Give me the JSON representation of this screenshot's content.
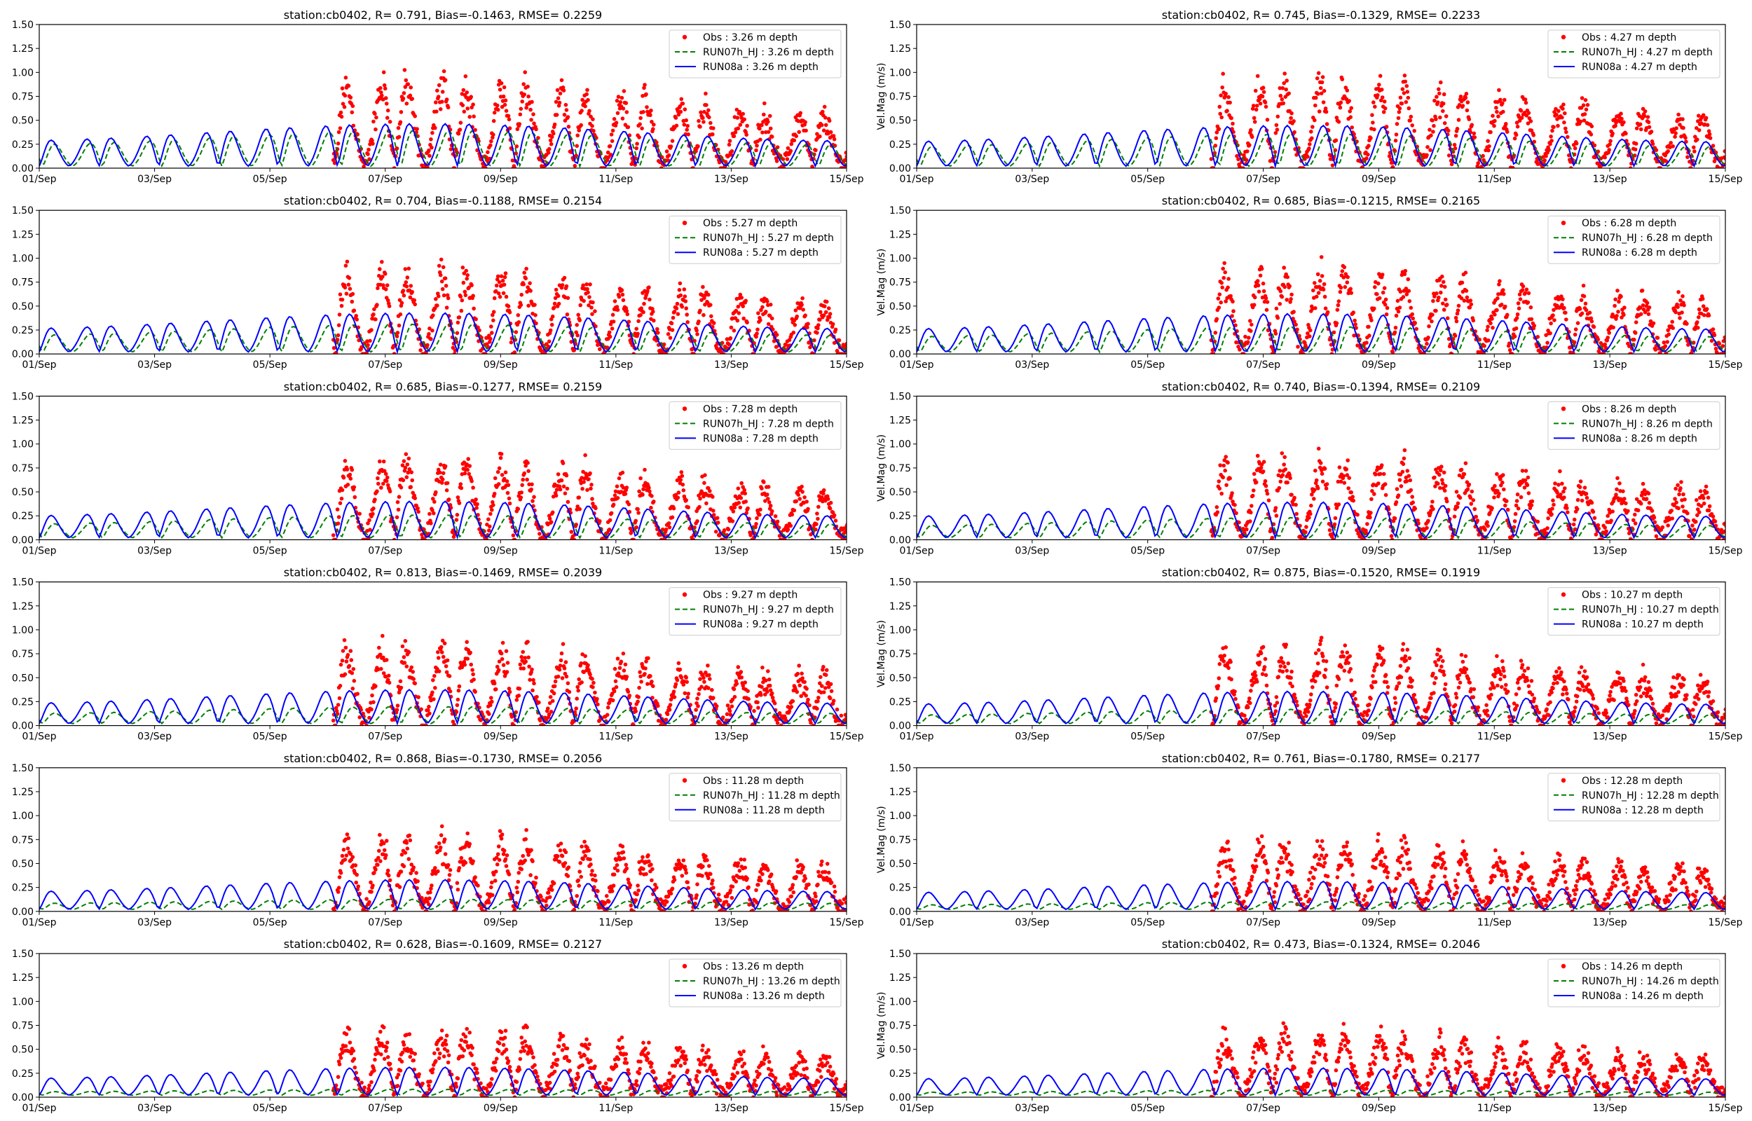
{
  "figure": {
    "ylabel_right": "Vel.Mag (m/s)",
    "colors": {
      "obs": "#ff0000",
      "run07": "#008000",
      "run08": "#0000ff",
      "axis": "#000000",
      "legend_border": "#cccccc"
    }
  },
  "chart_data": [
    {
      "type": "line",
      "title": "station:cb0402, R= 0.791, Bias=-0.1463, RMSE= 0.2259",
      "xlabel": "",
      "ylabel": "",
      "ylim": [
        0,
        1.5
      ],
      "xlim_days": [
        0,
        14
      ],
      "yticks": [
        "0.00",
        "0.25",
        "0.50",
        "0.75",
        "1.00",
        "1.25",
        "1.50"
      ],
      "xticks": [
        "01/Sep",
        "03/Sep",
        "05/Sep",
        "07/Sep",
        "09/Sep",
        "11/Sep",
        "13/Sep",
        "15/Sep"
      ],
      "legend_position": "top-right",
      "legend": [
        "Obs : 3.26 m depth",
        "RUN07h_HJ : 3.26 m depth",
        "RUN08a : 3.26 m depth"
      ],
      "model_amp_08": 0.5,
      "model_amp_07": 0.42,
      "obs_amp": 1.0,
      "obs_start_day": 5.1
    },
    {
      "type": "line",
      "title": "station:cb0402, R= 0.745, Bias=-0.1329, RMSE= 0.2233",
      "xlabel": "",
      "ylabel": "Vel.Mag (m/s)",
      "ylim": [
        0,
        1.5
      ],
      "xlim_days": [
        0,
        14
      ],
      "yticks": [
        "0.00",
        "0.25",
        "0.50",
        "0.75",
        "1.00",
        "1.25",
        "1.50"
      ],
      "xticks": [
        "01/Sep",
        "03/Sep",
        "05/Sep",
        "07/Sep",
        "09/Sep",
        "11/Sep",
        "13/Sep",
        "15/Sep"
      ],
      "legend_position": "top-right",
      "legend": [
        "Obs : 4.27 m depth",
        "RUN07h_HJ : 4.27 m depth",
        "RUN08a : 4.27 m depth"
      ],
      "model_amp_08": 0.48,
      "model_amp_07": 0.38,
      "obs_amp": 0.98,
      "obs_start_day": 5.1
    },
    {
      "type": "line",
      "title": "station:cb0402, R= 0.704, Bias=-0.1188, RMSE= 0.2154",
      "xlabel": "",
      "ylabel": "",
      "ylim": [
        0,
        1.5
      ],
      "xlim_days": [
        0,
        14
      ],
      "yticks": [
        "0.00",
        "0.25",
        "0.50",
        "0.75",
        "1.00",
        "1.25",
        "1.50"
      ],
      "xticks": [
        "01/Sep",
        "03/Sep",
        "05/Sep",
        "07/Sep",
        "09/Sep",
        "11/Sep",
        "13/Sep",
        "15/Sep"
      ],
      "legend_position": "top-right",
      "legend": [
        "Obs : 5.27 m depth",
        "RUN07h_HJ : 5.27 m depth",
        "RUN08a : 5.27 m depth"
      ],
      "model_amp_08": 0.46,
      "model_amp_07": 0.33,
      "obs_amp": 0.95,
      "obs_start_day": 5.1
    },
    {
      "type": "line",
      "title": "station:cb0402, R= 0.685, Bias=-0.1215, RMSE= 0.2165",
      "xlabel": "",
      "ylabel": "Vel.Mag (m/s)",
      "ylim": [
        0,
        1.5
      ],
      "xlim_days": [
        0,
        14
      ],
      "yticks": [
        "0.00",
        "0.25",
        "0.50",
        "0.75",
        "1.00",
        "1.25",
        "1.50"
      ],
      "xticks": [
        "01/Sep",
        "03/Sep",
        "05/Sep",
        "07/Sep",
        "09/Sep",
        "11/Sep",
        "13/Sep",
        "15/Sep"
      ],
      "legend_position": "top-right",
      "legend": [
        "Obs : 6.28 m depth",
        "RUN07h_HJ : 6.28 m depth",
        "RUN08a : 6.28 m depth"
      ],
      "model_amp_08": 0.45,
      "model_amp_07": 0.3,
      "obs_amp": 0.95,
      "obs_start_day": 5.1
    },
    {
      "type": "line",
      "title": "station:cb0402, R= 0.685, Bias=-0.1277, RMSE= 0.2159",
      "xlabel": "",
      "ylabel": "",
      "ylim": [
        0,
        1.5
      ],
      "xlim_days": [
        0,
        14
      ],
      "yticks": [
        "0.00",
        "0.25",
        "0.50",
        "0.75",
        "1.00",
        "1.25",
        "1.50"
      ],
      "xticks": [
        "01/Sep",
        "03/Sep",
        "05/Sep",
        "07/Sep",
        "09/Sep",
        "11/Sep",
        "13/Sep",
        "15/Sep"
      ],
      "legend_position": "top-right",
      "legend": [
        "Obs : 7.28 m depth",
        "RUN07h_HJ : 7.28 m depth",
        "RUN08a : 7.28 m depth"
      ],
      "model_amp_08": 0.43,
      "model_amp_07": 0.27,
      "obs_amp": 0.92,
      "obs_start_day": 5.1
    },
    {
      "type": "line",
      "title": "station:cb0402, R= 0.740, Bias=-0.1394, RMSE= 0.2109",
      "xlabel": "",
      "ylabel": "Vel.Mag (m/s)",
      "ylim": [
        0,
        1.5
      ],
      "xlim_days": [
        0,
        14
      ],
      "yticks": [
        "0.00",
        "0.25",
        "0.50",
        "0.75",
        "1.00",
        "1.25",
        "1.50"
      ],
      "xticks": [
        "01/Sep",
        "03/Sep",
        "05/Sep",
        "07/Sep",
        "09/Sep",
        "11/Sep",
        "13/Sep",
        "15/Sep"
      ],
      "legend_position": "top-right",
      "legend": [
        "Obs : 8.26 m depth",
        "RUN07h_HJ : 8.26 m depth",
        "RUN08a : 8.26 m depth"
      ],
      "model_amp_08": 0.42,
      "model_amp_07": 0.24,
      "obs_amp": 0.92,
      "obs_start_day": 5.1
    },
    {
      "type": "line",
      "title": "station:cb0402, R= 0.813, Bias=-0.1469, RMSE= 0.2039",
      "xlabel": "",
      "ylabel": "",
      "ylim": [
        0,
        1.5
      ],
      "xlim_days": [
        0,
        14
      ],
      "yticks": [
        "0.00",
        "0.25",
        "0.50",
        "0.75",
        "1.00",
        "1.25",
        "1.50"
      ],
      "xticks": [
        "01/Sep",
        "03/Sep",
        "05/Sep",
        "07/Sep",
        "09/Sep",
        "11/Sep",
        "13/Sep",
        "15/Sep"
      ],
      "legend_position": "top-right",
      "legend": [
        "Obs : 9.27 m depth",
        "RUN07h_HJ : 9.27 m depth",
        "RUN08a : 9.27 m depth"
      ],
      "model_amp_08": 0.4,
      "model_amp_07": 0.2,
      "obs_amp": 0.9,
      "obs_start_day": 5.1
    },
    {
      "type": "line",
      "title": "station:cb0402, R= 0.875, Bias=-0.1520, RMSE= 0.1919",
      "xlabel": "",
      "ylabel": "Vel.Mag (m/s)",
      "ylim": [
        0,
        1.5
      ],
      "xlim_days": [
        0,
        14
      ],
      "yticks": [
        "0.00",
        "0.25",
        "0.50",
        "0.75",
        "1.00",
        "1.25",
        "1.50"
      ],
      "xticks": [
        "01/Sep",
        "03/Sep",
        "05/Sep",
        "07/Sep",
        "09/Sep",
        "11/Sep",
        "13/Sep",
        "15/Sep"
      ],
      "legend_position": "top-right",
      "legend": [
        "Obs : 10.27 m depth",
        "RUN07h_HJ : 10.27 m depth",
        "RUN08a : 10.27 m depth"
      ],
      "model_amp_08": 0.38,
      "model_amp_07": 0.17,
      "obs_amp": 0.88,
      "obs_start_day": 5.1
    },
    {
      "type": "line",
      "title": "station:cb0402, R= 0.868, Bias=-0.1730, RMSE= 0.2056",
      "xlabel": "",
      "ylabel": "",
      "ylim": [
        0,
        1.5
      ],
      "xlim_days": [
        0,
        14
      ],
      "yticks": [
        "0.00",
        "0.25",
        "0.50",
        "0.75",
        "1.00",
        "1.25",
        "1.50"
      ],
      "xticks": [
        "01/Sep",
        "03/Sep",
        "05/Sep",
        "07/Sep",
        "09/Sep",
        "11/Sep",
        "13/Sep",
        "15/Sep"
      ],
      "legend_position": "top-right",
      "legend": [
        "Obs : 11.28 m depth",
        "RUN07h_HJ : 11.28 m depth",
        "RUN08a : 11.28 m depth"
      ],
      "model_amp_08": 0.35,
      "model_amp_07": 0.12,
      "obs_amp": 0.82,
      "obs_start_day": 5.1
    },
    {
      "type": "line",
      "title": "station:cb0402, R= 0.761, Bias=-0.1780, RMSE= 0.2177",
      "xlabel": "",
      "ylabel": "Vel.Mag (m/s)",
      "ylim": [
        0,
        1.5
      ],
      "xlim_days": [
        0,
        14
      ],
      "yticks": [
        "0.00",
        "0.25",
        "0.50",
        "0.75",
        "1.00",
        "1.25",
        "1.50"
      ],
      "xticks": [
        "01/Sep",
        "03/Sep",
        "05/Sep",
        "07/Sep",
        "09/Sep",
        "11/Sep",
        "13/Sep",
        "15/Sep"
      ],
      "legend_position": "top-right",
      "legend": [
        "Obs : 12.28 m depth",
        "RUN07h_HJ : 12.28 m depth",
        "RUN08a : 12.28 m depth"
      ],
      "model_amp_08": 0.33,
      "model_amp_07": 0.09,
      "obs_amp": 0.78,
      "obs_start_day": 5.1
    },
    {
      "type": "line",
      "title": "station:cb0402, R= 0.628, Bias=-0.1609, RMSE= 0.2127",
      "xlabel": "",
      "ylabel": "",
      "ylim": [
        0,
        1.5
      ],
      "xlim_days": [
        0,
        14
      ],
      "yticks": [
        "0.00",
        "0.25",
        "0.50",
        "0.75",
        "1.00",
        "1.25",
        "1.50"
      ],
      "xticks": [
        "01/Sep",
        "03/Sep",
        "05/Sep",
        "07/Sep",
        "09/Sep",
        "11/Sep",
        "13/Sep",
        "15/Sep"
      ],
      "legend_position": "top-right",
      "legend": [
        "Obs : 13.26 m depth",
        "RUN07h_HJ : 13.26 m depth",
        "RUN08a : 13.26 m depth"
      ],
      "model_amp_08": 0.33,
      "model_amp_07": 0.07,
      "obs_amp": 0.72,
      "obs_start_day": 5.1
    },
    {
      "type": "line",
      "title": "station:cb0402, R= 0.473, Bias=-0.1324, RMSE= 0.2046",
      "xlabel": "",
      "ylabel": "Vel.Mag (m/s)",
      "ylim": [
        0,
        1.5
      ],
      "xlim_days": [
        0,
        14
      ],
      "yticks": [
        "0.00",
        "0.25",
        "0.50",
        "0.75",
        "1.00",
        "1.25",
        "1.50"
      ],
      "xticks": [
        "01/Sep",
        "03/Sep",
        "05/Sep",
        "07/Sep",
        "09/Sep",
        "11/Sep",
        "13/Sep",
        "15/Sep"
      ],
      "legend_position": "top-right",
      "legend": [
        "Obs : 14.26 m depth",
        "RUN07h_HJ : 14.26 m depth",
        "RUN08a : 14.26 m depth"
      ],
      "model_amp_08": 0.32,
      "model_amp_07": 0.06,
      "obs_amp": 0.72,
      "obs_start_day": 5.1
    }
  ]
}
